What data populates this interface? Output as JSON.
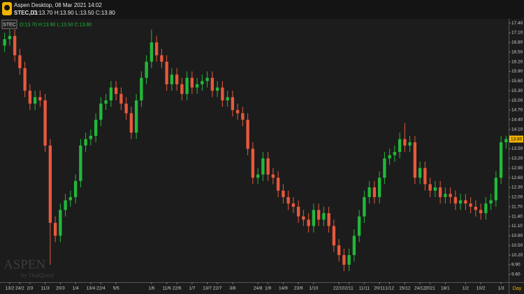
{
  "chart_data": {
    "type": "candlestick",
    "title": "Aspen Desktop, 08 Mar 2021 14:02",
    "symbol": "STEC,D1",
    "ohlc_text": "O:13.70 H:13.90 L:13.50 C:13.80",
    "legend_symbol": "STEC",
    "watermark": "ASPEN",
    "watermark_sub": "by ThaiQuest",
    "x_unit": "Day",
    "up_color": "#22b83a",
    "down_color": "#e8583c",
    "ylim": [
      9.36,
      17.51
    ],
    "yticks": [
      {
        "value": 9.6,
        "label": "9.60"
      },
      {
        "value": 9.9,
        "label": "9.90"
      },
      {
        "value": 10.2,
        "label": "10.20"
      },
      {
        "value": 10.5,
        "label": "10.50"
      },
      {
        "value": 10.8,
        "label": "10.80"
      },
      {
        "value": 11.1,
        "label": "11.10"
      },
      {
        "value": 11.4,
        "label": "11.40"
      },
      {
        "value": 11.7,
        "label": "11.70"
      },
      {
        "value": 12,
        "label": "12.00"
      },
      {
        "value": 12.3,
        "label": "12.30"
      },
      {
        "value": 12.6,
        "label": "12.60"
      },
      {
        "value": 12.9,
        "label": "12.90"
      },
      {
        "value": 13.2,
        "label": "13.20"
      },
      {
        "value": 13.5,
        "label": "13.50"
      },
      {
        "value": 13.8,
        "label": "13.80"
      },
      {
        "value": 14.1,
        "label": "14.10"
      },
      {
        "value": 14.4,
        "label": "14.40"
      },
      {
        "value": 14.7,
        "label": "14.70"
      },
      {
        "value": 15,
        "label": "15.00"
      },
      {
        "value": 15.3,
        "label": "15.30"
      },
      {
        "value": 15.6,
        "label": "15.60"
      },
      {
        "value": 15.9,
        "label": "15.90"
      },
      {
        "value": 16.2,
        "label": "16.20"
      },
      {
        "value": 16.5,
        "label": "16.50"
      },
      {
        "value": 16.8,
        "label": "16.80"
      },
      {
        "value": 17.1,
        "label": "17.10"
      },
      {
        "value": 17.4,
        "label": "17.40"
      }
    ],
    "last_price": {
      "value": 13.8,
      "label": "13.80"
    },
    "categories": [
      null,
      "13/2",
      null,
      "24/2",
      null,
      "2/3",
      null,
      null,
      "11/3",
      null,
      null,
      "20/3",
      null,
      null,
      "1/4",
      null,
      null,
      "13/4",
      null,
      "22/4",
      null,
      null,
      "5/5",
      null,
      null,
      null,
      null,
      null,
      null,
      "1/6",
      null,
      null,
      "11/6",
      null,
      "22/6",
      null,
      null,
      "1/7",
      null,
      null,
      "13/7",
      null,
      "22/7",
      null,
      null,
      "3/8",
      null,
      null,
      null,
      null,
      "24/8",
      null,
      "1/9",
      null,
      null,
      "14/9",
      null,
      null,
      "23/9",
      null,
      null,
      "1/10",
      null,
      null,
      null,
      null,
      "22/10",
      null,
      "2/11",
      null,
      null,
      "11/11",
      null,
      null,
      "20/11",
      null,
      "1/12",
      null,
      null,
      "15/12",
      null,
      null,
      "24/12",
      null,
      "2021",
      null,
      null,
      "18/1",
      null,
      null,
      null,
      "1/2",
      null,
      null,
      "10/2",
      null,
      null,
      null,
      "1/3",
      null
    ],
    "open": [
      16.7,
      16.9,
      17.0,
      16.4,
      16.0,
      15.3,
      14.9,
      15.1,
      15.0,
      13.6,
      11.2,
      10.8,
      11.6,
      11.9,
      12.0,
      12.5,
      13.6,
      13.8,
      13.9,
      14.4,
      14.9,
      15.0,
      15.4,
      15.2,
      14.9,
      14.6,
      14.0,
      15.0,
      15.7,
      16.2,
      16.8,
      16.4,
      16.2,
      15.5,
      15.8,
      15.5,
      15.2,
      15.7,
      15.4,
      15.5,
      15.6,
      15.7,
      15.3,
      15.4,
      15.0,
      15.1,
      14.7,
      14.6,
      14.4,
      13.5,
      12.6,
      12.7,
      13.2,
      12.7,
      12.6,
      12.2,
      12.0,
      11.8,
      11.7,
      11.4,
      11.3,
      11.1,
      11.6,
      11.3,
      11.5,
      11.1,
      10.5,
      10.2,
      9.9,
      10.2,
      10.8,
      11.4,
      12.0,
      12.3,
      12.0,
      12.6,
      13.2,
      13.3,
      13.4,
      13.8,
      13.6,
      13.7,
      12.6,
      12.9,
      12.4,
      12.2,
      12.3,
      12.0,
      12.1,
      12.0,
      11.8,
      11.9,
      11.8,
      11.7,
      11.6,
      11.5,
      11.8,
      11.9,
      12.6,
      13.7
    ],
    "high": [
      17.1,
      17.2,
      17.2,
      16.6,
      16.2,
      15.5,
      15.3,
      15.3,
      15.2,
      13.8,
      11.4,
      11.8,
      12.1,
      12.2,
      12.7,
      13.8,
      14.0,
      14.1,
      14.6,
      15.1,
      15.2,
      15.6,
      15.6,
      15.4,
      15.1,
      14.8,
      15.2,
      15.9,
      16.4,
      17.2,
      17.0,
      16.6,
      16.4,
      16.0,
      16.0,
      15.7,
      15.9,
      15.9,
      15.7,
      15.8,
      15.9,
      15.9,
      15.6,
      15.6,
      15.3,
      15.3,
      14.9,
      14.8,
      14.6,
      13.7,
      12.9,
      13.4,
      13.4,
      12.9,
      12.8,
      12.4,
      12.2,
      12.0,
      11.9,
      11.6,
      11.5,
      11.8,
      11.8,
      11.7,
      11.7,
      11.3,
      10.7,
      10.4,
      10.4,
      11.0,
      11.6,
      12.2,
      12.5,
      12.5,
      12.8,
      13.4,
      13.5,
      13.6,
      14.0,
      14.3,
      13.9,
      13.9,
      13.1,
      13.1,
      12.6,
      12.5,
      12.5,
      12.3,
      12.3,
      12.2,
      12.1,
      12.1,
      12.0,
      11.9,
      11.8,
      12.0,
      12.1,
      12.8,
      13.9,
      13.9
    ],
    "low": [
      16.5,
      16.7,
      16.2,
      15.8,
      15.1,
      14.7,
      14.7,
      14.8,
      13.4,
      9.9,
      10.6,
      10.6,
      11.4,
      11.7,
      11.8,
      12.3,
      13.4,
      13.6,
      13.7,
      14.2,
      14.7,
      14.8,
      15.0,
      14.7,
      14.4,
      13.8,
      13.8,
      14.8,
      15.5,
      16.0,
      16.2,
      16.0,
      15.3,
      15.3,
      15.3,
      15.0,
      15.0,
      15.2,
      15.2,
      15.3,
      15.4,
      15.1,
      15.1,
      14.8,
      14.8,
      14.5,
      14.4,
      14.2,
      13.3,
      12.4,
      12.4,
      12.5,
      12.5,
      12.4,
      12.0,
      11.8,
      11.6,
      11.5,
      11.2,
      11.1,
      10.9,
      10.9,
      11.1,
      11.1,
      10.9,
      10.3,
      10.0,
      9.7,
      9.7,
      10.0,
      10.6,
      11.2,
      11.8,
      11.8,
      11.8,
      12.4,
      13.0,
      13.1,
      13.2,
      13.4,
      13.4,
      12.4,
      12.4,
      12.2,
      12.0,
      12.0,
      11.8,
      11.8,
      11.8,
      11.6,
      11.6,
      11.6,
      11.5,
      11.4,
      11.3,
      11.3,
      11.6,
      11.7,
      12.4,
      13.5
    ],
    "close": [
      16.9,
      17.0,
      16.4,
      16.0,
      15.3,
      14.9,
      15.1,
      15.0,
      13.6,
      11.2,
      10.8,
      11.6,
      11.9,
      12.0,
      12.5,
      13.6,
      13.8,
      13.9,
      14.4,
      14.9,
      15.0,
      15.4,
      15.2,
      14.9,
      14.6,
      14.0,
      15.0,
      15.7,
      16.2,
      16.8,
      16.4,
      16.2,
      15.5,
      15.8,
      15.5,
      15.2,
      15.7,
      15.4,
      15.5,
      15.6,
      15.7,
      15.3,
      15.4,
      15.0,
      15.1,
      14.7,
      14.6,
      14.4,
      13.5,
      12.6,
      12.7,
      13.2,
      12.7,
      12.6,
      12.2,
      12.0,
      11.8,
      11.7,
      11.4,
      11.3,
      11.1,
      11.6,
      11.3,
      11.5,
      11.1,
      10.5,
      10.2,
      9.9,
      10.2,
      10.8,
      11.4,
      12.0,
      12.3,
      12.0,
      12.6,
      13.2,
      13.3,
      13.4,
      13.8,
      13.6,
      13.7,
      12.6,
      12.9,
      12.4,
      12.2,
      12.3,
      12.0,
      12.1,
      12.0,
      11.8,
      11.9,
      11.8,
      11.7,
      11.6,
      11.5,
      11.8,
      11.9,
      12.6,
      13.7,
      13.8
    ]
  }
}
